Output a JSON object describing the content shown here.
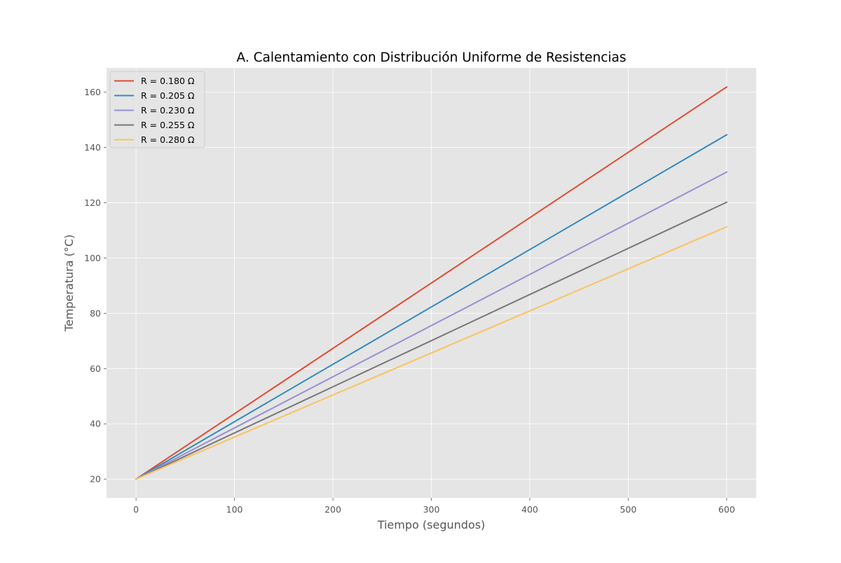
{
  "chart_data": {
    "type": "line",
    "title": "A. Calentamiento con Distribución Uniforme de Resistencias",
    "xlabel": "Tiempo (segundos)",
    "ylabel": "Temperatura (°C)",
    "xlim": [
      -30,
      630
    ],
    "ylim": [
      13.2,
      168.8
    ],
    "xticks": [
      0,
      100,
      200,
      300,
      400,
      500,
      600
    ],
    "yticks": [
      20,
      40,
      60,
      80,
      100,
      120,
      140,
      160
    ],
    "xtick_labels": [
      "0",
      "100",
      "200",
      "300",
      "400",
      "500",
      "600"
    ],
    "ytick_labels": [
      "20",
      "40",
      "60",
      "80",
      "100",
      "120",
      "140",
      "160"
    ],
    "grid": true,
    "legend_position": "upper-left",
    "x": [
      0,
      600
    ],
    "series": [
      {
        "name": "R = 0.180 Ω",
        "color": "#E24A33",
        "values": [
          20,
          161.9
        ]
      },
      {
        "name": "R = 0.205 Ω",
        "color": "#348ABD",
        "values": [
          20,
          144.6
        ]
      },
      {
        "name": "R = 0.230 Ω",
        "color": "#988ED5",
        "values": [
          20,
          131.1
        ]
      },
      {
        "name": "R = 0.255 Ω",
        "color": "#777777",
        "values": [
          20,
          120.2
        ]
      },
      {
        "name": "R = 0.280 Ω",
        "color": "#FBC15E",
        "values": [
          20,
          111.3
        ]
      }
    ]
  }
}
